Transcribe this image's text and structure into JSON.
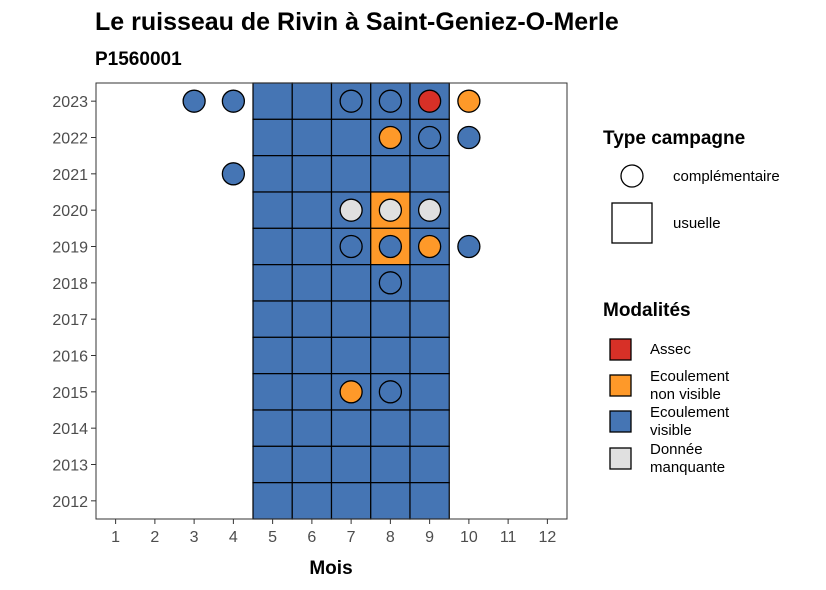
{
  "chart_data": {
    "type": "heatmap",
    "title": "Le ruisseau de Rivin à Saint-Geniez-O-Merle",
    "subtitle": "P1560001",
    "xlabel": "Mois",
    "ylabel": "",
    "x_ticks": [
      "1",
      "2",
      "3",
      "4",
      "5",
      "6",
      "7",
      "8",
      "9",
      "10",
      "11",
      "12"
    ],
    "y_ticks": [
      "2012",
      "2013",
      "2014",
      "2015",
      "2016",
      "2017",
      "2018",
      "2019",
      "2020",
      "2021",
      "2022",
      "2023"
    ],
    "xlim": [
      0.5,
      12.5
    ],
    "ylim": [
      2011.5,
      2023.5
    ],
    "colors": {
      "Assec": "#d73027",
      "Ecoulement non visible": "#fe9929",
      "Ecoulement visible": "#4575b4",
      "Donnée manquante": "#e0e0e0"
    },
    "usuelle": [
      {
        "year": 2023,
        "month": 5,
        "modalite": "Ecoulement visible"
      },
      {
        "year": 2023,
        "month": 6,
        "modalite": "Ecoulement visible"
      },
      {
        "year": 2023,
        "month": 7,
        "modalite": "Ecoulement visible"
      },
      {
        "year": 2023,
        "month": 8,
        "modalite": "Ecoulement visible"
      },
      {
        "year": 2023,
        "month": 9,
        "modalite": "Ecoulement visible"
      },
      {
        "year": 2022,
        "month": 5,
        "modalite": "Ecoulement visible"
      },
      {
        "year": 2022,
        "month": 6,
        "modalite": "Ecoulement visible"
      },
      {
        "year": 2022,
        "month": 7,
        "modalite": "Ecoulement visible"
      },
      {
        "year": 2022,
        "month": 8,
        "modalite": "Ecoulement visible"
      },
      {
        "year": 2022,
        "month": 9,
        "modalite": "Ecoulement visible"
      },
      {
        "year": 2021,
        "month": 5,
        "modalite": "Ecoulement visible"
      },
      {
        "year": 2021,
        "month": 6,
        "modalite": "Ecoulement visible"
      },
      {
        "year": 2021,
        "month": 7,
        "modalite": "Ecoulement visible"
      },
      {
        "year": 2021,
        "month": 8,
        "modalite": "Ecoulement visible"
      },
      {
        "year": 2021,
        "month": 9,
        "modalite": "Ecoulement visible"
      },
      {
        "year": 2020,
        "month": 5,
        "modalite": "Ecoulement visible"
      },
      {
        "year": 2020,
        "month": 6,
        "modalite": "Ecoulement visible"
      },
      {
        "year": 2020,
        "month": 7,
        "modalite": "Ecoulement visible"
      },
      {
        "year": 2020,
        "month": 8,
        "modalite": "Ecoulement non visible"
      },
      {
        "year": 2020,
        "month": 9,
        "modalite": "Ecoulement visible"
      },
      {
        "year": 2019,
        "month": 5,
        "modalite": "Ecoulement visible"
      },
      {
        "year": 2019,
        "month": 6,
        "modalite": "Ecoulement visible"
      },
      {
        "year": 2019,
        "month": 7,
        "modalite": "Ecoulement visible"
      },
      {
        "year": 2019,
        "month": 8,
        "modalite": "Ecoulement non visible"
      },
      {
        "year": 2019,
        "month": 9,
        "modalite": "Ecoulement visible"
      },
      {
        "year": 2018,
        "month": 5,
        "modalite": "Ecoulement visible"
      },
      {
        "year": 2018,
        "month": 6,
        "modalite": "Ecoulement visible"
      },
      {
        "year": 2018,
        "month": 7,
        "modalite": "Ecoulement visible"
      },
      {
        "year": 2018,
        "month": 8,
        "modalite": "Ecoulement visible"
      },
      {
        "year": 2018,
        "month": 9,
        "modalite": "Ecoulement visible"
      },
      {
        "year": 2017,
        "month": 5,
        "modalite": "Ecoulement visible"
      },
      {
        "year": 2017,
        "month": 6,
        "modalite": "Ecoulement visible"
      },
      {
        "year": 2017,
        "month": 7,
        "modalite": "Ecoulement visible"
      },
      {
        "year": 2017,
        "month": 8,
        "modalite": "Ecoulement visible"
      },
      {
        "year": 2017,
        "month": 9,
        "modalite": "Ecoulement visible"
      },
      {
        "year": 2016,
        "month": 5,
        "modalite": "Ecoulement visible"
      },
      {
        "year": 2016,
        "month": 6,
        "modalite": "Ecoulement visible"
      },
      {
        "year": 2016,
        "month": 7,
        "modalite": "Ecoulement visible"
      },
      {
        "year": 2016,
        "month": 8,
        "modalite": "Ecoulement visible"
      },
      {
        "year": 2016,
        "month": 9,
        "modalite": "Ecoulement visible"
      },
      {
        "year": 2015,
        "month": 5,
        "modalite": "Ecoulement visible"
      },
      {
        "year": 2015,
        "month": 6,
        "modalite": "Ecoulement visible"
      },
      {
        "year": 2015,
        "month": 7,
        "modalite": "Ecoulement visible"
      },
      {
        "year": 2015,
        "month": 8,
        "modalite": "Ecoulement visible"
      },
      {
        "year": 2015,
        "month": 9,
        "modalite": "Ecoulement visible"
      },
      {
        "year": 2014,
        "month": 5,
        "modalite": "Ecoulement visible"
      },
      {
        "year": 2014,
        "month": 6,
        "modalite": "Ecoulement visible"
      },
      {
        "year": 2014,
        "month": 7,
        "modalite": "Ecoulement visible"
      },
      {
        "year": 2014,
        "month": 8,
        "modalite": "Ecoulement visible"
      },
      {
        "year": 2014,
        "month": 9,
        "modalite": "Ecoulement visible"
      },
      {
        "year": 2013,
        "month": 5,
        "modalite": "Ecoulement visible"
      },
      {
        "year": 2013,
        "month": 6,
        "modalite": "Ecoulement visible"
      },
      {
        "year": 2013,
        "month": 7,
        "modalite": "Ecoulement visible"
      },
      {
        "year": 2013,
        "month": 8,
        "modalite": "Ecoulement visible"
      },
      {
        "year": 2013,
        "month": 9,
        "modalite": "Ecoulement visible"
      },
      {
        "year": 2012,
        "month": 5,
        "modalite": "Ecoulement visible"
      },
      {
        "year": 2012,
        "month": 6,
        "modalite": "Ecoulement visible"
      },
      {
        "year": 2012,
        "month": 7,
        "modalite": "Ecoulement visible"
      },
      {
        "year": 2012,
        "month": 8,
        "modalite": "Ecoulement visible"
      },
      {
        "year": 2012,
        "month": 9,
        "modalite": "Ecoulement visible"
      }
    ],
    "complementaire": [
      {
        "year": 2023,
        "month": 3,
        "modalite": "Ecoulement visible"
      },
      {
        "year": 2023,
        "month": 4,
        "modalite": "Ecoulement visible"
      },
      {
        "year": 2023,
        "month": 7,
        "modalite": "Ecoulement visible"
      },
      {
        "year": 2023,
        "month": 8,
        "modalite": "Ecoulement visible"
      },
      {
        "year": 2023,
        "month": 9,
        "modalite": "Assec"
      },
      {
        "year": 2023,
        "month": 10,
        "modalite": "Ecoulement non visible"
      },
      {
        "year": 2022,
        "month": 8,
        "modalite": "Ecoulement non visible"
      },
      {
        "year": 2022,
        "month": 9,
        "modalite": "Ecoulement visible"
      },
      {
        "year": 2022,
        "month": 10,
        "modalite": "Ecoulement visible"
      },
      {
        "year": 2021,
        "month": 4,
        "modalite": "Ecoulement visible"
      },
      {
        "year": 2020,
        "month": 7,
        "modalite": "Donnée manquante"
      },
      {
        "year": 2020,
        "month": 8,
        "modalite": "Donnée manquante"
      },
      {
        "year": 2020,
        "month": 9,
        "modalite": "Donnée manquante"
      },
      {
        "year": 2019,
        "month": 7,
        "modalite": "Ecoulement visible"
      },
      {
        "year": 2019,
        "month": 8,
        "modalite": "Ecoulement visible"
      },
      {
        "year": 2019,
        "month": 9,
        "modalite": "Ecoulement non visible"
      },
      {
        "year": 2019,
        "month": 10,
        "modalite": "Ecoulement visible"
      },
      {
        "year": 2018,
        "month": 8,
        "modalite": "Ecoulement visible"
      },
      {
        "year": 2015,
        "month": 7,
        "modalite": "Ecoulement non visible"
      },
      {
        "year": 2015,
        "month": 8,
        "modalite": "Ecoulement visible"
      }
    ],
    "legend": {
      "type_title": "Type campagne",
      "type_items": [
        {
          "label": "complémentaire",
          "shape": "circle"
        },
        {
          "label": "usuelle",
          "shape": "square"
        }
      ],
      "mod_title": "Modalités",
      "mod_items": [
        {
          "key": "Assec",
          "lines": [
            "Assec"
          ]
        },
        {
          "key": "Ecoulement non visible",
          "lines": [
            "Ecoulement",
            "non visible"
          ]
        },
        {
          "key": "Ecoulement visible",
          "lines": [
            "Ecoulement",
            "visible"
          ]
        },
        {
          "key": "Donnée manquante",
          "lines": [
            "Donnée",
            "manquante"
          ]
        }
      ]
    }
  }
}
